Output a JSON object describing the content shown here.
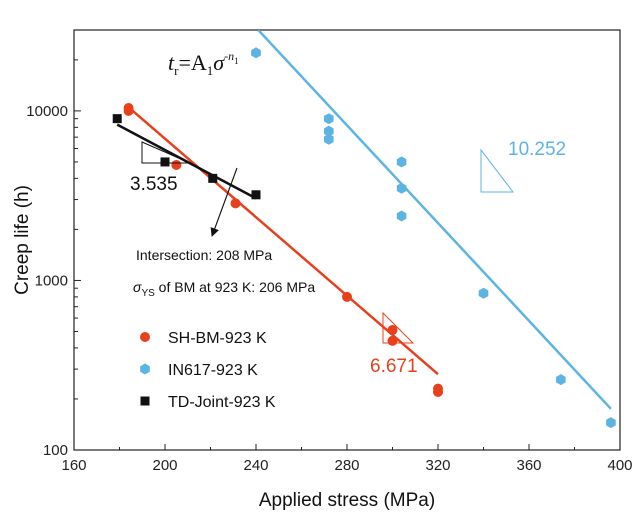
{
  "chart_data": {
    "type": "scatter",
    "xlabel": "Applied stress (MPa)",
    "ylabel": "Creep life (h)",
    "xlim": [
      160,
      400
    ],
    "ylim": [
      100,
      30000
    ],
    "y_scale": "log",
    "x_ticks": [
      "160",
      "200",
      "240",
      "280",
      "320",
      "360",
      "400"
    ],
    "x_tick_values": [
      160,
      200,
      240,
      280,
      320,
      360,
      400
    ],
    "y_ticks": [
      "100",
      "1000",
      "10000"
    ],
    "y_tick_values": [
      100,
      1000,
      10000
    ],
    "grid": false,
    "legend_position": "bottom-left",
    "equation": {
      "lead": "t",
      "lead_sub": "r",
      "mid": "=A",
      "mid_sub": "1",
      "sym": "σ",
      "exp": "-n",
      "exp_sub": "1"
    },
    "series": [
      {
        "name": "SH-BM-923 K",
        "color": "#e8401c",
        "marker": "circle",
        "points": [
          [
            184,
            10400
          ],
          [
            184,
            10000
          ],
          [
            205,
            4800
          ],
          [
            231,
            2850
          ],
          [
            280,
            800
          ],
          [
            300,
            510
          ],
          [
            300,
            440
          ],
          [
            320,
            230
          ],
          [
            320,
            220
          ]
        ],
        "fit": [
          [
            184,
            10500
          ],
          [
            320,
            280
          ]
        ],
        "slope_label": "6.671"
      },
      {
        "name": "IN617-923 K",
        "color": "#5cb4e2",
        "marker": "hexagon",
        "points": [
          [
            240,
            22000
          ],
          [
            272,
            9000
          ],
          [
            272,
            7600
          ],
          [
            272,
            6800
          ],
          [
            304,
            5000
          ],
          [
            304,
            3500
          ],
          [
            304,
            2400
          ],
          [
            340,
            840
          ],
          [
            374,
            260
          ],
          [
            396,
            145
          ]
        ],
        "fit": [
          [
            241,
            30000
          ],
          [
            396,
            175
          ]
        ],
        "slope_label": "10.252"
      },
      {
        "name": "TD-Joint-923 K",
        "color": "#111111",
        "marker": "square",
        "points": [
          [
            179,
            9000
          ],
          [
            200,
            5000
          ],
          [
            221,
            4000
          ],
          [
            240,
            3200
          ]
        ],
        "fit": [
          [
            179,
            8300
          ],
          [
            240,
            3050
          ]
        ],
        "slope_label": "3.535"
      }
    ],
    "annotations": {
      "intersection": "Intersection: 208 MPa",
      "ys_symbol": "σ",
      "ys_sub": "YS",
      "ys_rest": " of BM at 923 K: 206 MPa"
    }
  }
}
